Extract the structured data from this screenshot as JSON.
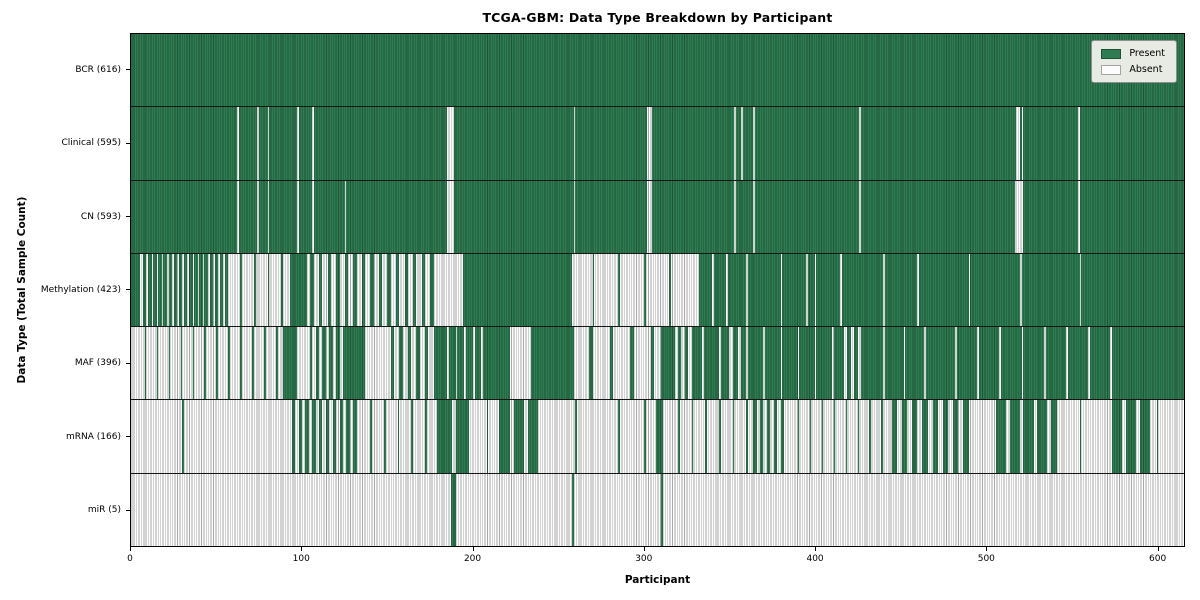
{
  "chart_data": {
    "type": "heatmap",
    "title": "TCGA-GBM: Data Type Breakdown by Participant",
    "xlabel": "Participant",
    "ylabel": "Data Type (Total Sample Count)",
    "x_ticks": [
      0,
      100,
      200,
      300,
      400,
      500,
      600
    ],
    "x_range": [
      0,
      616
    ],
    "n_participants": 616,
    "grid": false,
    "legend_position": "upper-right",
    "legend": [
      {
        "label": "Present",
        "color": "#2e7d52"
      },
      {
        "label": "Absent",
        "color": "#fcfcfc"
      }
    ],
    "colors": {
      "present": "#2e7d52",
      "absent": "#fcfcfc",
      "bar_edge": "rgba(0,0,0,0.33)",
      "row_divider": "#161616",
      "plot_border": "#000000",
      "legend_bg": "#e7ebe3",
      "legend_border": "#8f8f8f"
    },
    "rows": [
      {
        "data_type": "BCR",
        "label": "BCR (616)",
        "present_count": 616,
        "absent_count": 0,
        "ranges_are": "absent",
        "ranges": []
      },
      {
        "data_type": "Clinical",
        "label": "Clinical (595)",
        "present_count": 595,
        "absent_count": 21,
        "ranges_are": "absent",
        "ranges": [
          [
            62,
            63
          ],
          [
            74,
            75
          ],
          [
            80,
            81
          ],
          [
            97,
            98
          ],
          [
            106,
            107
          ],
          [
            185,
            189
          ],
          [
            259,
            260
          ],
          [
            302,
            305
          ],
          [
            353,
            354
          ],
          [
            357,
            358
          ],
          [
            364,
            365
          ],
          [
            426,
            427
          ],
          [
            518,
            520
          ],
          [
            521,
            522
          ],
          [
            554,
            555
          ]
        ]
      },
      {
        "data_type": "CN",
        "label": "CN (593)",
        "present_count": 593,
        "absent_count": 23,
        "ranges_are": "absent",
        "ranges": [
          [
            62,
            63
          ],
          [
            74,
            75
          ],
          [
            80,
            81
          ],
          [
            97,
            98
          ],
          [
            106,
            107
          ],
          [
            125,
            126
          ],
          [
            185,
            189
          ],
          [
            259,
            260
          ],
          [
            302,
            305
          ],
          [
            353,
            354
          ],
          [
            364,
            365
          ],
          [
            426,
            427
          ],
          [
            517,
            522
          ],
          [
            554,
            555
          ]
        ]
      },
      {
        "data_type": "Methylation",
        "label": "Methylation (423)",
        "present_count": 423,
        "absent_count": 193,
        "ranges_are": "absent",
        "ranges": [
          [
            5,
            7
          ],
          [
            9,
            10
          ],
          [
            12,
            13
          ],
          [
            15,
            16
          ],
          [
            18,
            19
          ],
          [
            21,
            22
          ],
          [
            24,
            25
          ],
          [
            27,
            28
          ],
          [
            30,
            31
          ],
          [
            33,
            34
          ],
          [
            36,
            37
          ],
          [
            39,
            40
          ],
          [
            42,
            43
          ],
          [
            45,
            46
          ],
          [
            48,
            49
          ],
          [
            51,
            52
          ],
          [
            54,
            55
          ],
          [
            57,
            64
          ],
          [
            65,
            72
          ],
          [
            73,
            80
          ],
          [
            81,
            88
          ],
          [
            89,
            93
          ],
          [
            103,
            105
          ],
          [
            107,
            110
          ],
          [
            112,
            115
          ],
          [
            117,
            120
          ],
          [
            122,
            125
          ],
          [
            127,
            130
          ],
          [
            132,
            135
          ],
          [
            137,
            140
          ],
          [
            142,
            145
          ],
          [
            147,
            150
          ],
          [
            152,
            155
          ],
          [
            157,
            160
          ],
          [
            162,
            165
          ],
          [
            167,
            170
          ],
          [
            172,
            175
          ],
          [
            177,
            180
          ],
          [
            180,
            194
          ],
          [
            258,
            270
          ],
          [
            271,
            285
          ],
          [
            286,
            300
          ],
          [
            301,
            315
          ],
          [
            316,
            332
          ],
          [
            340,
            341
          ],
          [
            348,
            349
          ],
          [
            360,
            361
          ],
          [
            380,
            381
          ],
          [
            395,
            396
          ],
          [
            400,
            401
          ],
          [
            415,
            416
          ],
          [
            440,
            441
          ],
          [
            460,
            461
          ],
          [
            490,
            491
          ],
          [
            520,
            521
          ],
          [
            555,
            556
          ]
        ]
      },
      {
        "data_type": "MAF",
        "label": "MAF (396)",
        "present_count": 396,
        "absent_count": 220,
        "ranges_are": "absent",
        "ranges": [
          [
            0,
            8
          ],
          [
            9,
            15
          ],
          [
            16,
            22
          ],
          [
            23,
            29
          ],
          [
            30,
            36
          ],
          [
            37,
            43
          ],
          [
            44,
            50
          ],
          [
            51,
            57
          ],
          [
            58,
            64
          ],
          [
            65,
            71
          ],
          [
            72,
            78
          ],
          [
            79,
            85
          ],
          [
            86,
            89
          ],
          [
            97,
            105
          ],
          [
            106,
            108
          ],
          [
            110,
            112
          ],
          [
            114,
            116
          ],
          [
            118,
            120
          ],
          [
            122,
            124
          ],
          [
            137,
            149
          ],
          [
            149,
            152
          ],
          [
            154,
            157
          ],
          [
            159,
            162
          ],
          [
            164,
            167
          ],
          [
            169,
            172
          ],
          [
            174,
            177
          ],
          [
            185,
            186
          ],
          [
            190,
            191
          ],
          [
            195,
            196
          ],
          [
            200,
            201
          ],
          [
            205,
            206
          ],
          [
            222,
            234
          ],
          [
            259,
            268
          ],
          [
            270,
            280
          ],
          [
            282,
            292
          ],
          [
            294,
            304
          ],
          [
            306,
            310
          ],
          [
            318,
            320
          ],
          [
            322,
            324
          ],
          [
            326,
            328
          ],
          [
            334,
            335
          ],
          [
            344,
            345
          ],
          [
            350,
            352
          ],
          [
            355,
            357
          ],
          [
            360,
            361
          ],
          [
            370,
            371
          ],
          [
            380,
            381
          ],
          [
            390,
            391
          ],
          [
            400,
            401
          ],
          [
            410,
            411
          ],
          [
            417,
            419
          ],
          [
            421,
            423
          ],
          [
            425,
            427
          ],
          [
            440,
            441
          ],
          [
            452,
            453
          ],
          [
            464,
            465
          ],
          [
            482,
            483
          ],
          [
            495,
            496
          ],
          [
            508,
            509
          ],
          [
            521,
            522
          ],
          [
            534,
            535
          ],
          [
            547,
            548
          ],
          [
            560,
            561
          ],
          [
            573,
            574
          ]
        ]
      },
      {
        "data_type": "mRNA",
        "label": "mRNA (166)",
        "present_count": 166,
        "absent_count": 450,
        "ranges_are": "present",
        "ranges": [
          [
            30,
            31
          ],
          [
            94,
            96
          ],
          [
            98,
            100
          ],
          [
            102,
            104
          ],
          [
            106,
            108
          ],
          [
            110,
            112
          ],
          [
            114,
            116
          ],
          [
            118,
            120
          ],
          [
            122,
            124
          ],
          [
            126,
            128
          ],
          [
            130,
            132
          ],
          [
            140,
            141
          ],
          [
            148,
            149
          ],
          [
            156,
            157
          ],
          [
            164,
            165
          ],
          [
            172,
            173
          ],
          [
            179,
            188
          ],
          [
            190,
            198
          ],
          [
            208,
            209
          ],
          [
            215,
            222
          ],
          [
            224,
            230
          ],
          [
            232,
            238
          ],
          [
            260,
            261
          ],
          [
            285,
            286
          ],
          [
            300,
            301
          ],
          [
            307,
            311
          ],
          [
            320,
            321
          ],
          [
            328,
            329
          ],
          [
            336,
            337
          ],
          [
            344,
            345
          ],
          [
            352,
            353
          ],
          [
            360,
            361
          ],
          [
            364,
            366
          ],
          [
            368,
            370
          ],
          [
            372,
            374
          ],
          [
            376,
            378
          ],
          [
            380,
            382
          ],
          [
            390,
            391
          ],
          [
            397,
            398
          ],
          [
            404,
            405
          ],
          [
            411,
            412
          ],
          [
            418,
            419
          ],
          [
            425,
            426
          ],
          [
            432,
            433
          ],
          [
            439,
            440
          ],
          [
            445,
            448
          ],
          [
            451,
            454
          ],
          [
            457,
            460
          ],
          [
            463,
            466
          ],
          [
            469,
            472
          ],
          [
            475,
            478
          ],
          [
            481,
            484
          ],
          [
            487,
            490
          ],
          [
            506,
            512
          ],
          [
            514,
            520
          ],
          [
            522,
            528
          ],
          [
            530,
            536
          ],
          [
            538,
            542
          ],
          [
            555,
            556
          ],
          [
            574,
            580
          ],
          [
            582,
            588
          ],
          [
            590,
            596
          ],
          [
            600,
            601
          ]
        ]
      },
      {
        "data_type": "miR",
        "label": "miR (5)",
        "present_count": 5,
        "absent_count": 611,
        "ranges_are": "present",
        "ranges": [
          [
            187,
            190
          ],
          [
            258,
            259
          ],
          [
            310,
            311
          ]
        ]
      }
    ]
  }
}
